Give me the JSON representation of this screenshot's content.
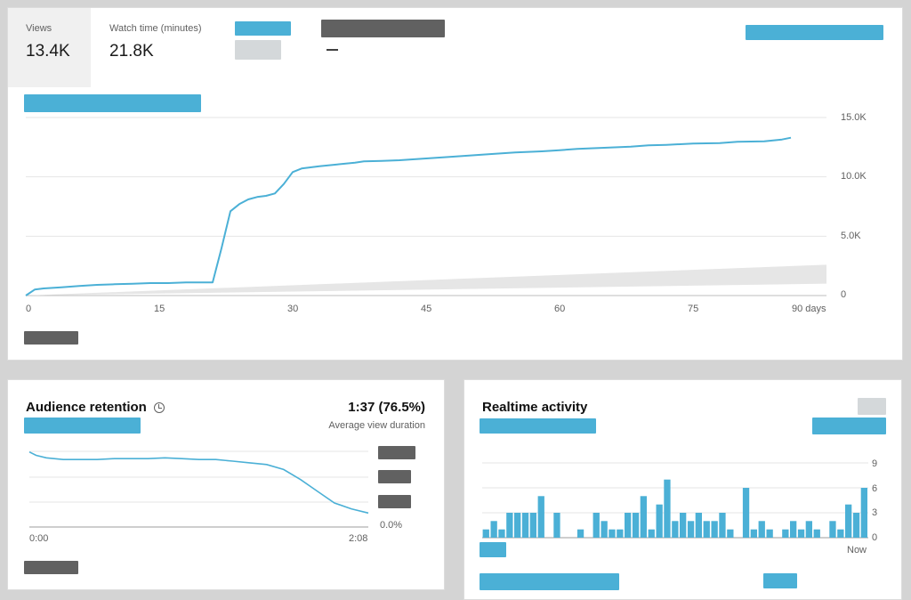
{
  "metrics": {
    "views_label": "Views",
    "views_value": "13.4K",
    "watch_label": "Watch time (minutes)",
    "watch_value": "21.8K",
    "typical_value": "—"
  },
  "main_chart": {
    "y_ticks": [
      "15.0K",
      "10.0K",
      "5.0K",
      "0"
    ],
    "x_ticks": [
      "0",
      "15",
      "30",
      "45",
      "60",
      "75",
      "90 days"
    ]
  },
  "retention": {
    "title": "Audience retention",
    "duration_value": "1:37 (76.5%)",
    "duration_label": "Average view duration",
    "x_start": "0:00",
    "x_end": "2:08",
    "y_label": "0.0%"
  },
  "realtime": {
    "title": "Realtime activity",
    "y_ticks": [
      "9",
      "6",
      "3",
      "0"
    ],
    "x_end": "Now"
  },
  "colors": {
    "accent": "#4bb0d6",
    "placeholder_dark": "#616161",
    "placeholder_light": "#d4d8da",
    "typical_band": "#e6e6e6"
  },
  "chart_data": [
    {
      "type": "line",
      "xlabel": "",
      "ylabel": "",
      "xlim": [
        0,
        90
      ],
      "ylim": [
        0,
        15000
      ],
      "x_ticks": [
        0,
        15,
        30,
        45,
        60,
        75,
        90
      ],
      "y_ticks": [
        0,
        5000,
        10000,
        15000
      ],
      "grid": true,
      "series": [
        {
          "x": [
            0,
            1,
            2,
            4,
            6,
            8,
            10,
            12,
            14,
            16,
            18,
            19,
            20,
            21,
            22,
            23,
            24,
            25,
            26,
            27,
            28,
            29,
            30,
            31,
            33,
            35,
            37,
            38,
            40,
            42,
            45,
            48,
            52,
            55,
            58,
            60,
            62,
            65,
            68,
            70,
            72,
            75,
            78,
            80,
            83,
            85,
            86
          ],
          "y": [
            0,
            500,
            600,
            700,
            800,
            900,
            950,
            1000,
            1050,
            1050,
            1100,
            1100,
            1100,
            1100,
            4000,
            7100,
            7700,
            8100,
            8300,
            8400,
            8600,
            9400,
            10400,
            10700,
            10900,
            11050,
            11200,
            11300,
            11350,
            11400,
            11550,
            11700,
            11900,
            12050,
            12150,
            12250,
            12350,
            12450,
            12550,
            12650,
            12700,
            12800,
            12850,
            12950,
            13000,
            13150,
            13300
          ]
        }
      ],
      "band": {
        "x": [
          0,
          90
        ],
        "lower": [
          0,
          1000
        ],
        "upper": [
          0,
          2600
        ]
      }
    },
    {
      "type": "line",
      "xlim": [
        "0:00",
        "2:08"
      ],
      "series": [
        {
          "x": [
            0,
            0.02,
            0.05,
            0.1,
            0.15,
            0.2,
            0.25,
            0.3,
            0.35,
            0.4,
            0.45,
            0.5,
            0.55,
            0.6,
            0.65,
            0.7,
            0.75,
            0.8,
            0.85,
            0.9,
            0.95,
            1.0
          ],
          "y": [
            0.95,
            0.91,
            0.88,
            0.86,
            0.86,
            0.86,
            0.87,
            0.87,
            0.87,
            0.88,
            0.87,
            0.86,
            0.86,
            0.84,
            0.82,
            0.8,
            0.74,
            0.62,
            0.48,
            0.34,
            0.27,
            0.22
          ]
        }
      ]
    },
    {
      "type": "bar",
      "ylim": [
        0,
        9
      ],
      "y_ticks": [
        0,
        3,
        6,
        9
      ],
      "x_end_label": "Now",
      "values": [
        1,
        2,
        1,
        3,
        3,
        3,
        3,
        5,
        0,
        3,
        0,
        0,
        1,
        0,
        3,
        2,
        1,
        1,
        3,
        3,
        5,
        1,
        4,
        7,
        2,
        3,
        2,
        3,
        2,
        2,
        3,
        1,
        0,
        6,
        1,
        2,
        1,
        0,
        1,
        2,
        1,
        2,
        1,
        0,
        2,
        1,
        4,
        3,
        6
      ]
    }
  ]
}
